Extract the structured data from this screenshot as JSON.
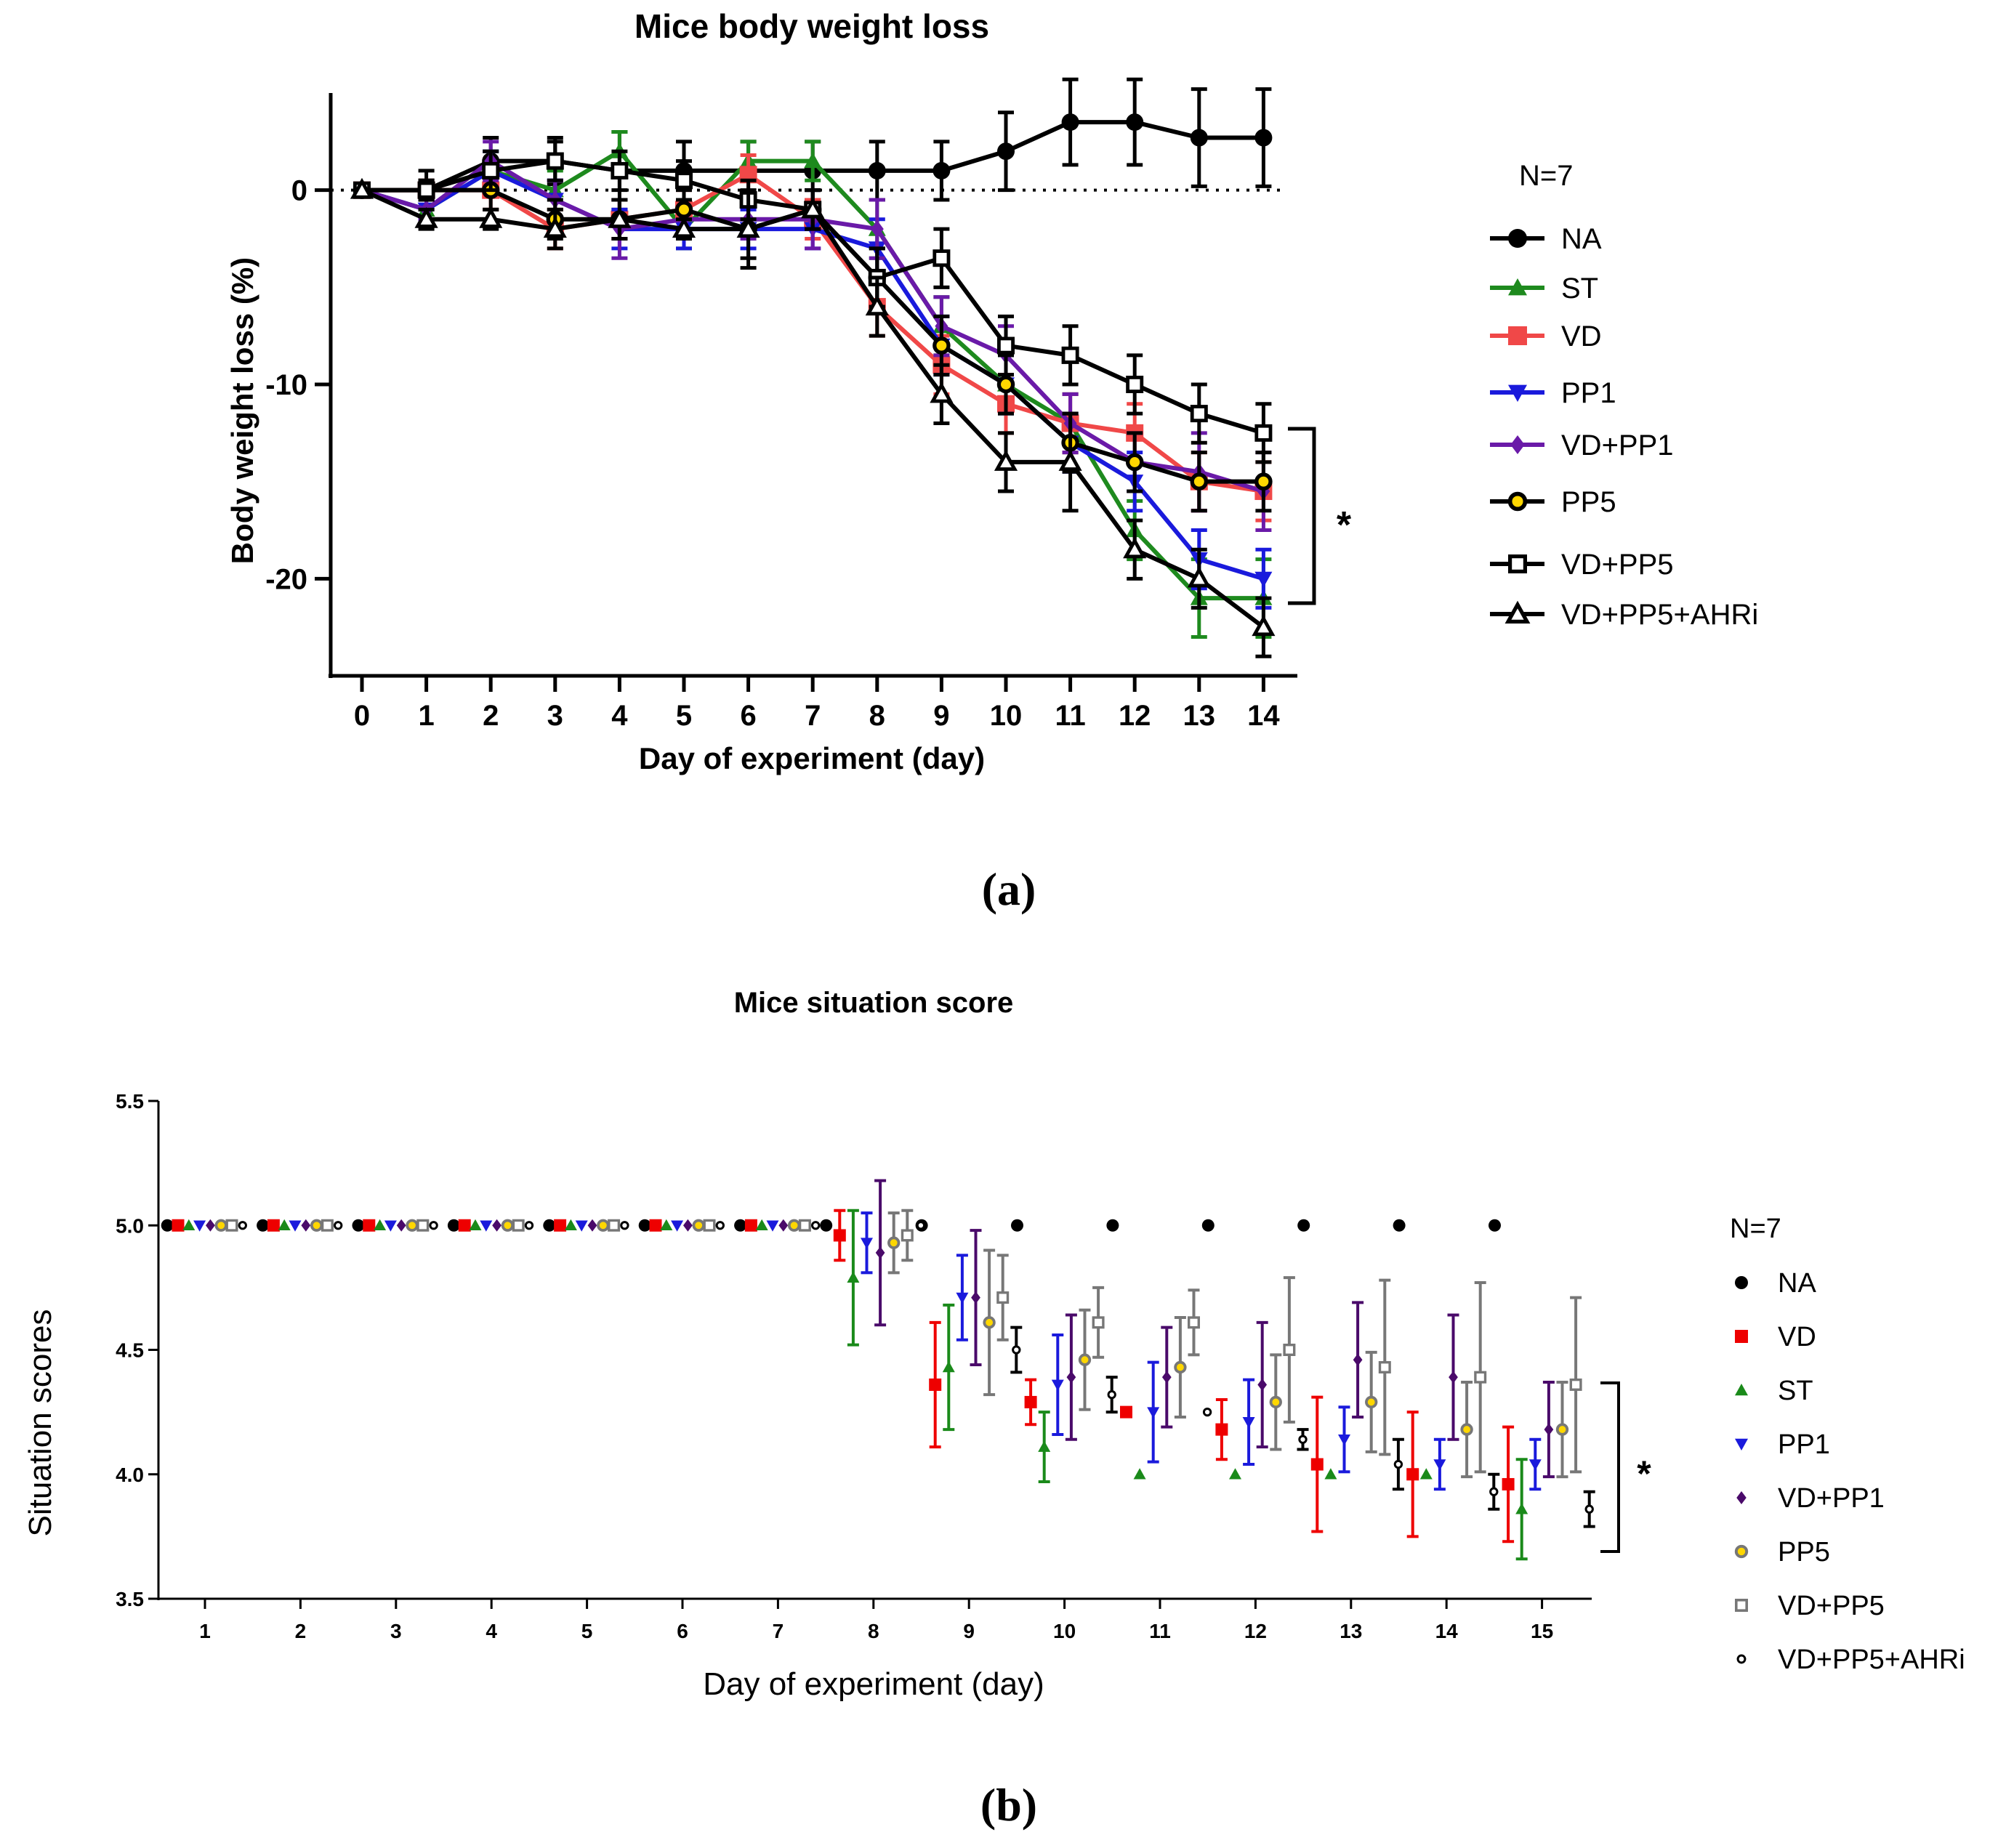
{
  "chart_data": [
    {
      "type": "line",
      "panel_label": "(a)",
      "title": "Mice body weight loss",
      "xlabel": "Day of experiment (day)",
      "ylabel": "Body weight loss (%)",
      "x": [
        0,
        1,
        2,
        3,
        4,
        5,
        6,
        7,
        8,
        9,
        10,
        11,
        12,
        13,
        14
      ],
      "xlim": [
        -0.5,
        14.5
      ],
      "ylim": [
        -25,
        5
      ],
      "yticks": [
        0,
        -10,
        -20
      ],
      "ytick_labels": [
        "0",
        "-10",
        "-20"
      ],
      "reference_line_y": 0,
      "legend_title": "N=7",
      "significance": "*",
      "series": [
        {
          "name": "NA",
          "color": "#000000",
          "marker": "circle",
          "values": [
            0,
            0,
            1.5,
            1.5,
            1,
            1,
            1,
            1,
            1,
            1,
            2,
            3.5,
            3.5,
            2.7,
            2.7
          ],
          "errors": [
            0,
            1,
            1.2,
            1.2,
            2,
            1.5,
            1.5,
            1.5,
            1.5,
            1.5,
            2,
            2.2,
            2.2,
            2.5,
            2.5
          ]
        },
        {
          "name": "ST",
          "color": "#1e8a1e",
          "marker": "triangle",
          "values": [
            0,
            -1,
            1,
            0,
            2,
            -2,
            1.5,
            1.5,
            -2,
            -7,
            -10,
            -12,
            -17.5,
            -21,
            -21
          ],
          "errors": [
            0,
            0.5,
            1,
            1,
            1,
            1,
            1,
            1,
            1.5,
            1.5,
            1.5,
            1.5,
            1.5,
            2,
            2
          ]
        },
        {
          "name": "VD",
          "color": "#f04848",
          "marker": "square",
          "values": [
            0,
            0,
            0,
            -2,
            -1.5,
            -1,
            0.8,
            -1.5,
            -6,
            -9,
            -11,
            -12,
            -12.5,
            -15,
            -15.5
          ],
          "errors": [
            0,
            0.5,
            1,
            1,
            1,
            1,
            1,
            1,
            1.5,
            1.5,
            1.5,
            1.5,
            1.5,
            1.5,
            1.5
          ]
        },
        {
          "name": "PP1",
          "color": "#1a1adc",
          "marker": "triangle-down",
          "values": [
            0,
            -1,
            1,
            -0.5,
            -2,
            -2,
            -2,
            -2,
            -3,
            -8,
            -10,
            -13,
            -15,
            -19,
            -20
          ],
          "errors": [
            0,
            0.5,
            1,
            1,
            1,
            1,
            1,
            1,
            1.5,
            1.5,
            1.5,
            1.5,
            1.5,
            1.5,
            1.5
          ]
        },
        {
          "name": "VD+PP1",
          "color": "#6a1aa8",
          "marker": "diamond",
          "values": [
            0,
            -1,
            1.5,
            -0.5,
            -2,
            -1.5,
            -1.5,
            -1.5,
            -2,
            -7,
            -8.5,
            -12,
            -14,
            -14.5,
            -15.5
          ],
          "errors": [
            0,
            0.5,
            1,
            1,
            1.5,
            1,
            1,
            1.5,
            1.5,
            1.5,
            1.5,
            1.5,
            1.5,
            2,
            2
          ]
        },
        {
          "name": "PP5",
          "color": "#000000",
          "fill": "#ffd700",
          "marker": "circle-open",
          "values": [
            0,
            0,
            0,
            -1.5,
            -1.5,
            -1,
            -2,
            -1,
            -4.5,
            -8,
            -10,
            -13,
            -14,
            -15,
            -15
          ],
          "errors": [
            0,
            0.5,
            1,
            1,
            1,
            1,
            1.5,
            1,
            1.5,
            1.5,
            1.5,
            1.5,
            1.5,
            1.5,
            1.5
          ]
        },
        {
          "name": "VD+PP5",
          "color": "#000000",
          "marker": "square-open",
          "values": [
            0,
            0,
            1,
            1.5,
            1,
            0.5,
            -0.5,
            -1,
            -4.5,
            -3.5,
            -8,
            -8.5,
            -10,
            -11.5,
            -12.5
          ],
          "errors": [
            0,
            0.5,
            1,
            1,
            1,
            1,
            1,
            1,
            1.5,
            1.5,
            1.5,
            1.5,
            1.5,
            1.5,
            1.5
          ]
        },
        {
          "name": "VD+PP5+AHRi",
          "color": "#000000",
          "marker": "triangle-open",
          "values": [
            0,
            -1.5,
            -1.5,
            -2,
            -1.5,
            -2,
            -2,
            -1,
            -6,
            -10.5,
            -14,
            -14,
            -18.5,
            -20,
            -22.5
          ],
          "errors": [
            0,
            0.5,
            0.5,
            1,
            1,
            0.5,
            2,
            1,
            1.5,
            1.5,
            1.5,
            2.5,
            1.5,
            1.5,
            1.5
          ]
        }
      ]
    },
    {
      "type": "scatter",
      "panel_label": "(b)",
      "title": "Mice situation score",
      "xlabel": "Day of experiment (day)",
      "ylabel": "Situation scores",
      "categories": [
        "1",
        "2",
        "3",
        "4",
        "5",
        "6",
        "7",
        "8",
        "9",
        "10",
        "11",
        "12",
        "13",
        "14",
        "15"
      ],
      "ylim": [
        3.5,
        5.5
      ],
      "yticks": [
        3.5,
        4.0,
        4.5,
        5.0,
        5.5
      ],
      "ytick_labels": [
        "3.5",
        "4.0",
        "4.5",
        "5.0",
        "5.5"
      ],
      "legend_title": "N=7",
      "significance": "*",
      "series": [
        {
          "name": "NA",
          "color": "#000000",
          "marker": "circle",
          "values": [
            5,
            5,
            5,
            5,
            5,
            5,
            5,
            5,
            5,
            5,
            5,
            5,
            5,
            5,
            5
          ],
          "errors": [
            0,
            0,
            0,
            0,
            0,
            0,
            0,
            0,
            0,
            0,
            0,
            0,
            0,
            0,
            0
          ]
        },
        {
          "name": "VD",
          "color": "#ee0000",
          "marker": "square",
          "values": [
            5,
            5,
            5,
            5,
            5,
            5,
            5,
            4.96,
            4.36,
            4.29,
            4.25,
            4.18,
            4.04,
            4.0,
            3.96
          ],
          "errors": [
            0,
            0,
            0,
            0,
            0,
            0,
            0,
            0.1,
            0.25,
            0.09,
            0,
            0.12,
            0.27,
            0.25,
            0.23
          ]
        },
        {
          "name": "ST",
          "color": "#1a8a1a",
          "marker": "triangle",
          "values": [
            5,
            5,
            5,
            5,
            5,
            5,
            5,
            4.79,
            4.43,
            4.11,
            4.0,
            4.0,
            4.0,
            4.0,
            3.86
          ],
          "errors": [
            0,
            0,
            0,
            0,
            0,
            0,
            0,
            0.27,
            0.25,
            0.14,
            0,
            0,
            0,
            0,
            0.2
          ]
        },
        {
          "name": "PP1",
          "color": "#1a1adc",
          "marker": "triangle-down",
          "values": [
            5,
            5,
            5,
            5,
            5,
            5,
            5,
            4.93,
            4.71,
            4.36,
            4.25,
            4.21,
            4.14,
            4.04,
            4.04
          ],
          "errors": [
            0,
            0,
            0,
            0,
            0,
            0,
            0,
            0.12,
            0.17,
            0.2,
            0.2,
            0.17,
            0.13,
            0.1,
            0.1
          ]
        },
        {
          "name": "VD+PP1",
          "color": "#4a0a6a",
          "marker": "diamond",
          "values": [
            5,
            5,
            5,
            5,
            5,
            5,
            5,
            4.89,
            4.71,
            4.39,
            4.39,
            4.36,
            4.46,
            4.39,
            4.18
          ],
          "errors": [
            0,
            0,
            0,
            0,
            0,
            0,
            0,
            0.29,
            0.27,
            0.25,
            0.2,
            0.25,
            0.23,
            0.25,
            0.19
          ]
        },
        {
          "name": "PP5",
          "color": "#777777",
          "fill": "#ffd700",
          "marker": "circle-open",
          "values": [
            5,
            5,
            5,
            5,
            5,
            5,
            5,
            4.93,
            4.61,
            4.46,
            4.43,
            4.29,
            4.29,
            4.18,
            4.18
          ],
          "errors": [
            0,
            0,
            0,
            0,
            0,
            0,
            0,
            0.12,
            0.29,
            0.2,
            0.2,
            0.19,
            0.2,
            0.19,
            0.19
          ]
        },
        {
          "name": "VD+PP5",
          "color": "#777777",
          "marker": "square-open",
          "values": [
            5,
            5,
            5,
            5,
            5,
            5,
            5,
            4.96,
            4.71,
            4.61,
            4.61,
            4.5,
            4.43,
            4.39,
            4.36
          ],
          "errors": [
            0,
            0,
            0,
            0,
            0,
            0,
            0,
            0.1,
            0.17,
            0.14,
            0.13,
            0.29,
            0.35,
            0.38,
            0.35
          ]
        },
        {
          "name": "VD+PP5+AHRi",
          "color": "#000000",
          "marker": "circle-small",
          "values": [
            5,
            5,
            5,
            5,
            5,
            5,
            5,
            5,
            4.5,
            4.32,
            4.25,
            4.14,
            4.04,
            3.93,
            3.86
          ],
          "errors": [
            0,
            0,
            0,
            0,
            0,
            0,
            0,
            0,
            0.09,
            0.07,
            0,
            0.04,
            0.1,
            0.07,
            0.07
          ]
        }
      ]
    }
  ]
}
